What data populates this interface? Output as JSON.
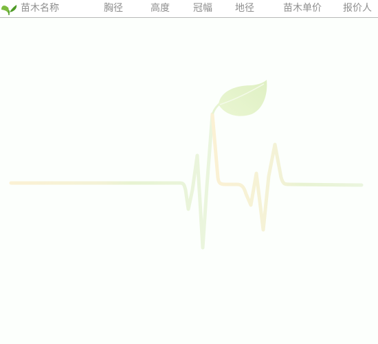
{
  "header": {
    "logo_icon": "seedling-icon",
    "columns": [
      {
        "label": "苗木名称"
      },
      {
        "label": "胸径"
      },
      {
        "label": "高度"
      },
      {
        "label": "冠幅"
      },
      {
        "label": "地径"
      },
      {
        "label": "苗木单价"
      },
      {
        "label": "报价人"
      }
    ]
  },
  "empty_state": {
    "illustration_icon": "heartbeat-leaf-icon"
  },
  "colors": {
    "header_text": "#8e8e8e",
    "divider": "#b8b8b8",
    "logo_green": "#5fa82e",
    "pulse_green": "#e6f3d2",
    "pulse_yellow": "#fbf3da"
  }
}
